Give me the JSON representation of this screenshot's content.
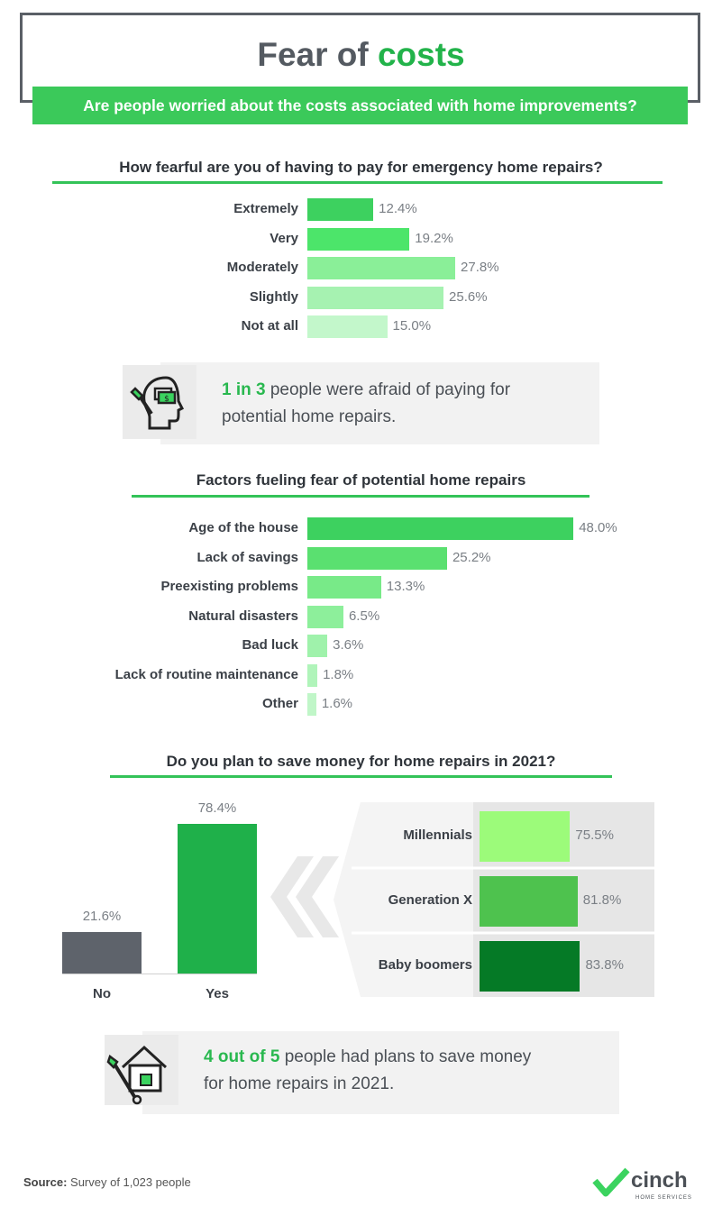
{
  "header": {
    "title_prefix": "Fear of",
    "title_highlight": "costs",
    "subtitle": "Are people worried about the costs associated with home improvements?"
  },
  "colors": {
    "green_dark": "#22b34a",
    "green_band": "#3bc95a",
    "gray_bar": "#5e636b",
    "yes_bar": "#1fb04a"
  },
  "chart_data": [
    {
      "type": "bar",
      "orientation": "horizontal",
      "title": "How fearful are you of having to pay for emergency home repairs?",
      "categories": [
        "Extremely",
        "Very",
        "Moderately",
        "Slightly",
        "Not at all"
      ],
      "values": [
        12.4,
        19.2,
        27.8,
        25.6,
        15.0
      ],
      "value_labels": [
        "12.4%",
        "19.2%",
        "27.8%",
        "25.6%",
        "15.0%"
      ],
      "colors": [
        "#3dd15f",
        "#4ce56a",
        "#8aef98",
        "#a6f2b1",
        "#c3f7cb"
      ]
    },
    {
      "type": "bar",
      "orientation": "horizontal",
      "title": "Factors fueling fear of potential home repairs",
      "categories": [
        "Age of the house",
        "Lack of savings",
        "Preexisting problems",
        "Natural disasters",
        "Bad luck",
        "Lack of routine maintenance",
        "Other"
      ],
      "values": [
        48.0,
        25.2,
        13.3,
        6.5,
        3.6,
        1.8,
        1.6
      ],
      "value_labels": [
        "48.0%",
        "25.2%",
        "13.3%",
        "6.5%",
        "3.6%",
        "1.8%",
        "1.6%"
      ],
      "colors": [
        "#3dd15f",
        "#5ae070",
        "#78ea88",
        "#8def9b",
        "#9ff2ab",
        "#b0f4ba",
        "#c0f6c8"
      ]
    },
    {
      "type": "bar",
      "orientation": "vertical",
      "title": "Do you plan to save money for home repairs in 2021?",
      "categories": [
        "No",
        "Yes"
      ],
      "values": [
        21.6,
        78.4
      ],
      "value_labels": [
        "21.6%",
        "78.4%"
      ],
      "colors": [
        "#5e636b",
        "#1fb04a"
      ]
    },
    {
      "type": "bar",
      "orientation": "horizontal",
      "categories": [
        "Millennials",
        "Generation X",
        "Baby boomers"
      ],
      "values": [
        75.5,
        81.8,
        83.8
      ],
      "value_labels": [
        "75.5%",
        "81.8%",
        "83.8%"
      ],
      "colors": [
        "#9cfb7a",
        "#4ec24e",
        "#057a26"
      ]
    }
  ],
  "callouts": [
    {
      "highlight": "1 in 3",
      "text": " people were afraid of paying for",
      "text2": "potential home repairs.",
      "icon": "head-money-wrench-icon"
    },
    {
      "highlight": "4 out of 5",
      "text": " people had plans to save money",
      "text2": "for home repairs in 2021.",
      "icon": "house-wrench-icon"
    }
  ],
  "footer": {
    "source_label": "Source:",
    "source_text": " Survey of 1,023 people",
    "logo": "cinch",
    "logo_sub": "HOME SERVICES"
  }
}
